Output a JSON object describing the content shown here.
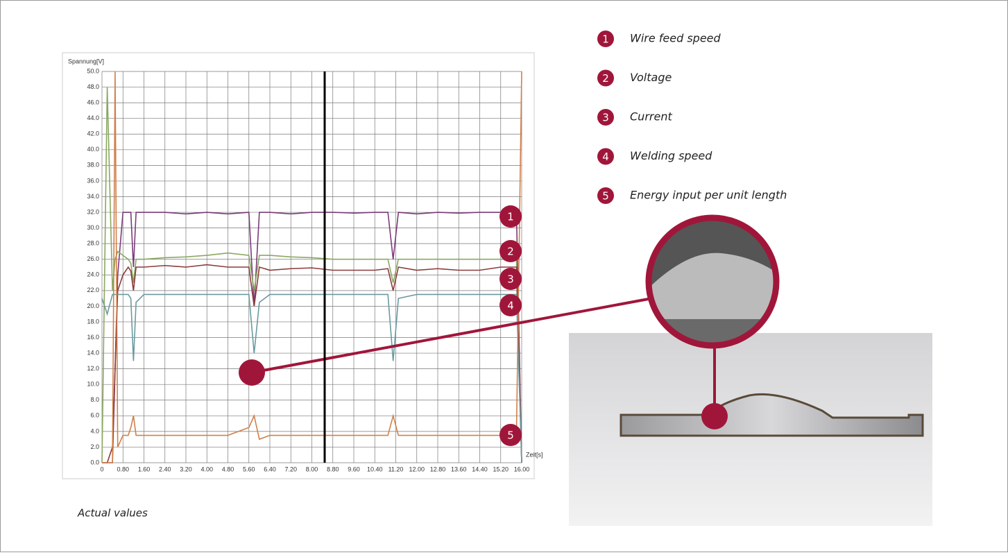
{
  "chart_data": {
    "type": "line",
    "y_label": "Spannung[V]",
    "x_label": "Zeit[s]",
    "caption": "Actual values",
    "xlim": [
      0,
      16
    ],
    "ylim": [
      0,
      50
    ],
    "grid": true,
    "xticks": [
      0,
      {
        "value": 0.8,
        "label": "0.80"
      },
      {
        "value": 1.6,
        "label": "1.60"
      },
      {
        "value": 2.4,
        "label": "2.40"
      },
      {
        "value": 3.2,
        "label": "3.20"
      },
      {
        "value": 4,
        "label": "4.00"
      },
      {
        "value": 4.8,
        "label": "4.80"
      },
      {
        "value": 5.6,
        "label": "5.60"
      },
      {
        "value": 6.4,
        "label": "6.40"
      },
      {
        "value": 7.2,
        "label": "7.20"
      },
      {
        "value": 8,
        "label": "8.00"
      },
      {
        "value": 8.8,
        "label": "8.80"
      },
      {
        "value": 9.6,
        "label": "9.60"
      },
      {
        "value": 10.4,
        "label": "10.40"
      },
      {
        "value": 11.2,
        "label": "11.20"
      },
      {
        "value": 12,
        "label": "12.00"
      },
      {
        "value": 12.8,
        "label": "12.80"
      },
      {
        "value": 13.6,
        "label": "13.60"
      },
      {
        "value": 14.4,
        "label": "14.40"
      },
      {
        "value": 15.2,
        "label": "15.20"
      },
      {
        "value": 16,
        "label": "16.00"
      }
    ],
    "yticks": [
      {
        "value": 0,
        "label": "0.0"
      },
      {
        "value": 2,
        "label": "2.0"
      },
      {
        "value": 4,
        "label": "4.0"
      },
      {
        "value": 6,
        "label": "6.0"
      },
      {
        "value": 8,
        "label": "8.0"
      },
      {
        "value": 10,
        "label": "10.0"
      },
      {
        "value": 12,
        "label": "12.0"
      },
      {
        "value": 14,
        "label": "14.0"
      },
      {
        "value": 16,
        "label": "16.0"
      },
      {
        "value": 18,
        "label": "18.0"
      },
      {
        "value": 20,
        "label": "20.0"
      },
      {
        "value": 22,
        "label": "22.0"
      },
      {
        "value": 24,
        "label": "24.0"
      },
      {
        "value": 26,
        "label": "26.0"
      },
      {
        "value": 28,
        "label": "28.0"
      },
      {
        "value": 30,
        "label": "30.0"
      },
      {
        "value": 32,
        "label": "32.0"
      },
      {
        "value": 34,
        "label": "34.0"
      },
      {
        "value": 36,
        "label": "36.0"
      },
      {
        "value": 38,
        "label": "38.0"
      },
      {
        "value": 40,
        "label": "40.0"
      },
      {
        "value": 42,
        "label": "42.0"
      },
      {
        "value": 44,
        "label": "44.0"
      },
      {
        "value": 46,
        "label": "46.0"
      },
      {
        "value": 48,
        "label": "48.0"
      },
      {
        "value": 50,
        "label": "50.0"
      }
    ],
    "x": [
      0,
      0.2,
      0.4,
      0.5,
      0.6,
      0.8,
      1.0,
      1.1,
      1.2,
      1.3,
      1.6,
      2.4,
      3.2,
      4.0,
      4.8,
      5.6,
      5.8,
      6.0,
      6.4,
      7.2,
      8.0,
      8.8,
      9.6,
      10.4,
      10.9,
      11.1,
      11.3,
      12.0,
      12.8,
      13.6,
      14.4,
      15.2,
      15.8,
      16.0
    ],
    "series": [
      {
        "label": "1",
        "name": "Wire feed speed",
        "color": "#7a3b7a",
        "values": [
          0,
          0,
          0,
          12,
          24,
          32,
          32,
          32,
          25,
          32,
          32,
          32,
          31.8,
          32,
          31.8,
          32,
          20,
          32,
          32,
          31.8,
          32,
          32,
          31.9,
          32,
          32,
          26,
          32,
          31.8,
          32,
          31.9,
          32,
          32,
          32,
          0
        ]
      },
      {
        "label": "2",
        "name": "Voltage",
        "color": "#8aa860",
        "values": [
          0,
          48,
          22,
          26,
          27,
          26.5,
          26,
          25.5,
          23,
          26,
          26,
          26.2,
          26.3,
          26.5,
          26.8,
          26.5,
          22,
          26.5,
          26.5,
          26.3,
          26.2,
          26,
          26,
          26,
          26,
          23,
          26,
          26,
          26,
          26,
          26,
          26,
          26,
          0
        ]
      },
      {
        "label": "3",
        "name": "Current",
        "color": "#8b3a3a",
        "values": [
          0,
          0,
          2,
          12,
          22,
          24,
          25,
          24.5,
          22,
          25,
          25,
          25.2,
          25,
          25.3,
          25,
          25,
          20,
          25,
          24.6,
          24.8,
          24.9,
          24.6,
          24.6,
          24.6,
          24.8,
          22,
          25,
          24.6,
          24.8,
          24.6,
          24.6,
          25,
          25,
          0
        ]
      },
      {
        "label": "4",
        "name": "Welding speed",
        "color": "#6a9aa0",
        "values": [
          21,
          19,
          21.5,
          21.5,
          21.5,
          21.5,
          21.5,
          21,
          13,
          20.5,
          21.5,
          21.5,
          21.5,
          21.5,
          21.5,
          21.5,
          14,
          20.5,
          21.5,
          21.5,
          21.5,
          21.5,
          21.5,
          21.5,
          21.5,
          13,
          21,
          21.5,
          21.5,
          21.5,
          21.5,
          21.5,
          21.5,
          0
        ]
      },
      {
        "label": "5",
        "name": "Energy input per unit length",
        "color": "#d0804a",
        "values": [
          0,
          0,
          0,
          50,
          2,
          3.5,
          3.5,
          4.5,
          6,
          3.5,
          3.5,
          3.5,
          3.5,
          3.5,
          3.5,
          4.5,
          6,
          3,
          3.5,
          3.5,
          3.5,
          3.5,
          3.5,
          3.5,
          3.5,
          6,
          3.5,
          3.5,
          3.5,
          3.5,
          3.5,
          3.5,
          3.5,
          50
        ]
      }
    ]
  }
}
